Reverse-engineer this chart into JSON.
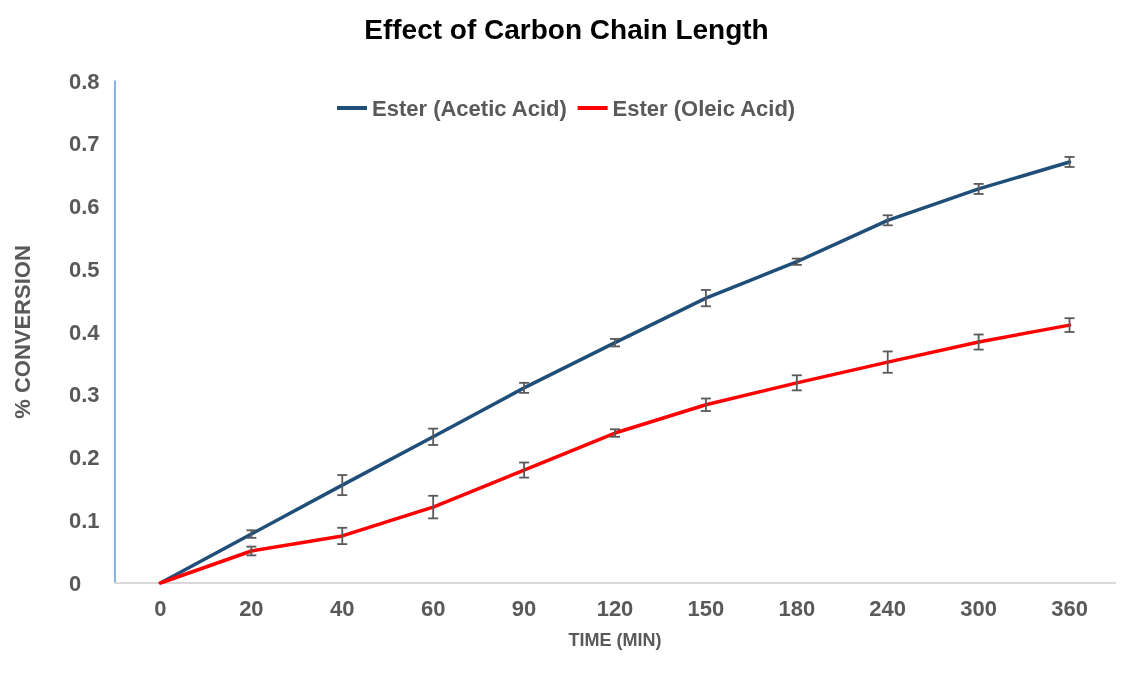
{
  "chart_data": {
    "type": "line",
    "title": "Effect of Carbon Chain Length",
    "xlabel": "TIME (MIN)",
    "ylabel": "% CONVERSION",
    "categories": [
      "0",
      "20",
      "40",
      "60",
      "90",
      "120",
      "150",
      "180",
      "240",
      "300",
      "360"
    ],
    "series": [
      {
        "name": "Ester (Acetic Acid)",
        "color": "#1f4e79",
        "values": [
          0,
          0.078,
          0.156,
          0.233,
          0.311,
          0.383,
          0.454,
          0.512,
          0.578,
          0.628,
          0.671
        ],
        "errors": [
          null,
          0.006,
          0.016,
          0.013,
          0.008,
          0.006,
          0.013,
          0.005,
          0.008,
          0.008,
          0.008
        ]
      },
      {
        "name": "Ester (Oleic Acid)",
        "color": "#ff0000",
        "values": [
          0,
          0.051,
          0.075,
          0.121,
          0.18,
          0.239,
          0.284,
          0.319,
          0.352,
          0.384,
          0.411
        ],
        "errors": [
          null,
          0.007,
          0.013,
          0.018,
          0.012,
          0.006,
          0.01,
          0.012,
          0.017,
          0.012,
          0.011
        ]
      }
    ],
    "ylim": [
      0,
      0.8
    ],
    "yticks": [
      0,
      0.1,
      0.2,
      0.3,
      0.4,
      0.5,
      0.6,
      0.7,
      0.8
    ],
    "grid": false,
    "legend": "top",
    "marker": "none",
    "line_style": "solid"
  }
}
